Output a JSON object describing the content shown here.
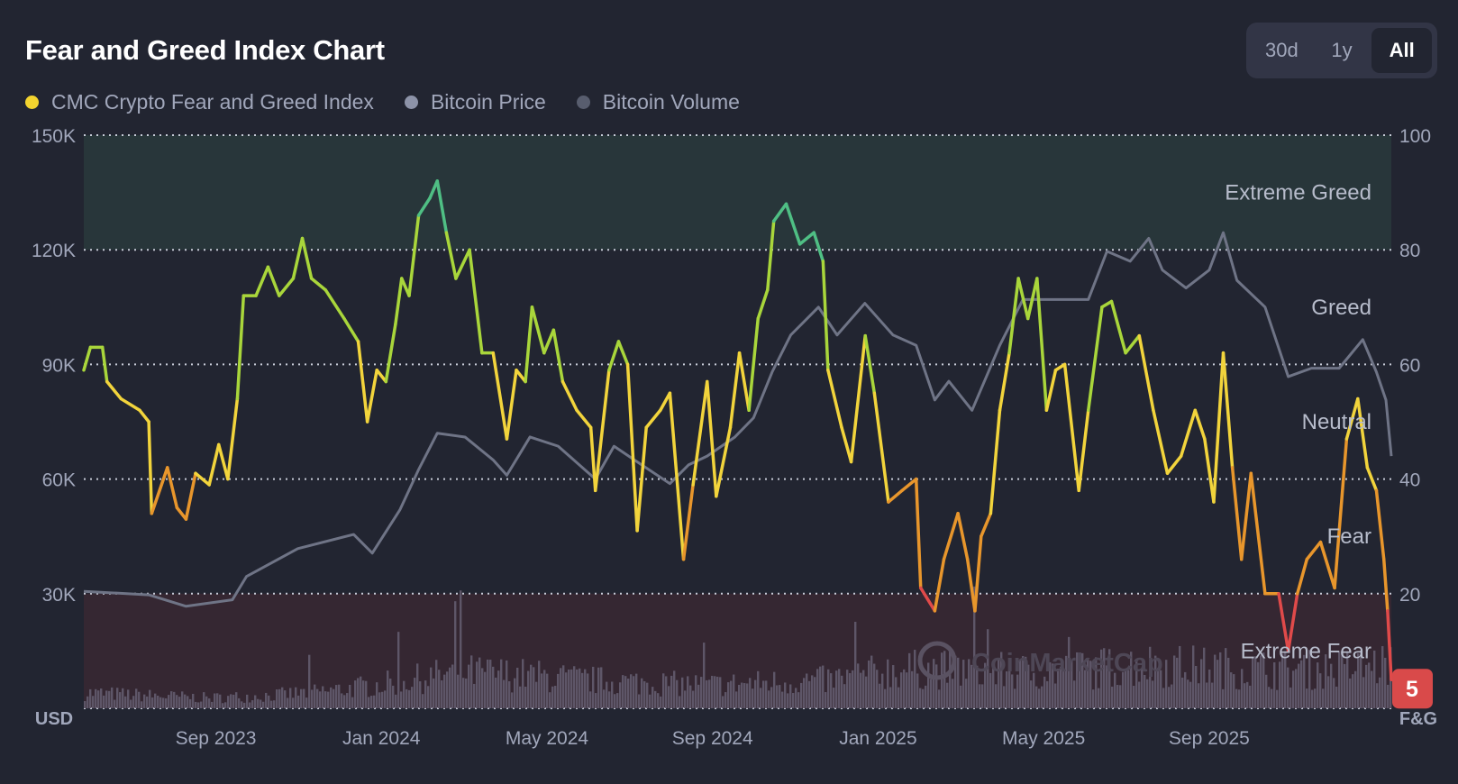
{
  "header": {
    "title": "Fear and Greed Index Chart"
  },
  "legend": [
    {
      "label": "CMC Crypto Fear and Greed Index",
      "color": "#f3d42f"
    },
    {
      "label": "Bitcoin Price",
      "color": "#8d93a8"
    },
    {
      "label": "Bitcoin Volume",
      "color": "#585d6e"
    }
  ],
  "range_buttons": [
    {
      "label": "30d",
      "active": false
    },
    {
      "label": "1y",
      "active": false
    },
    {
      "label": "All",
      "active": true
    }
  ],
  "watermark": "CoinMarketCap",
  "chart_data": {
    "type": "line",
    "title": "Fear and Greed Index Chart",
    "x_unit": "months since Jan 2023",
    "xlim": [
      4.81,
      36.4
    ],
    "x_ticks": [
      {
        "x": 8,
        "label": "Sep 2023"
      },
      {
        "x": 12,
        "label": "Jan 2024"
      },
      {
        "x": 16,
        "label": "May 2024"
      },
      {
        "x": 20,
        "label": "Sep 2024"
      },
      {
        "x": 24,
        "label": "Jan 2025"
      },
      {
        "x": 28,
        "label": "May 2025"
      },
      {
        "x": 32,
        "label": "Sep 2025"
      }
    ],
    "left_axis": {
      "label": "USD",
      "ylim": [
        0,
        150000
      ],
      "ticks": [
        "150K",
        "120K",
        "90K",
        "60K",
        "30K"
      ],
      "tick_values": [
        150000,
        120000,
        90000,
        60000,
        30000
      ]
    },
    "right_axis": {
      "label": "F&G",
      "ylim": [
        0,
        100
      ],
      "ticks": [
        "100",
        "80",
        "60",
        "40",
        "20"
      ],
      "tick_values": [
        100,
        80,
        60,
        40,
        20
      ]
    },
    "zones": [
      {
        "label": "Extreme Greed",
        "range": [
          80,
          100
        ],
        "label_at": 90,
        "color": "#28363a"
      },
      {
        "label": "Greed",
        "range": [
          60,
          80
        ],
        "label_at": 70
      },
      {
        "label": "Neutral",
        "range": [
          40,
          60
        ],
        "label_at": 50
      },
      {
        "label": "Fear",
        "range": [
          20,
          40
        ],
        "label_at": 30
      },
      {
        "label": "Extreme Fear",
        "range": [
          0,
          20
        ],
        "label_at": 10,
        "color": "#352732"
      }
    ],
    "current_value": {
      "label": "5",
      "value": 5,
      "color": "#d94a4a"
    },
    "fear_greed_colors": {
      "extreme_fear": "#e04a4a",
      "fear": "#e8962c",
      "neutral": "#f2d43c",
      "greed": "#a9d63b",
      "extreme_greed": "#4fbf84"
    },
    "series": [
      {
        "name": "CMC Crypto Fear and Greed Index",
        "axis": "right",
        "points": [
          [
            4.81,
            59
          ],
          [
            4.97,
            63
          ],
          [
            5.26,
            63
          ],
          [
            5.37,
            57
          ],
          [
            5.71,
            54
          ],
          [
            6.16,
            52
          ],
          [
            6.38,
            50
          ],
          [
            6.45,
            34
          ],
          [
            6.83,
            42
          ],
          [
            7.06,
            35
          ],
          [
            7.28,
            33
          ],
          [
            7.51,
            41
          ],
          [
            7.84,
            39
          ],
          [
            8.07,
            46
          ],
          [
            8.29,
            40
          ],
          [
            8.52,
            54
          ],
          [
            8.67,
            72
          ],
          [
            8.97,
            72
          ],
          [
            9.26,
            77
          ],
          [
            9.53,
            72
          ],
          [
            9.87,
            75
          ],
          [
            10.09,
            82
          ],
          [
            10.31,
            75
          ],
          [
            10.65,
            73
          ],
          [
            11.1,
            68
          ],
          [
            11.44,
            64
          ],
          [
            11.66,
            50
          ],
          [
            11.89,
            59
          ],
          [
            12.11,
            57
          ],
          [
            12.34,
            67
          ],
          [
            12.49,
            75
          ],
          [
            12.67,
            72
          ],
          [
            12.9,
            86
          ],
          [
            13.17,
            89
          ],
          [
            13.35,
            92
          ],
          [
            13.57,
            83
          ],
          [
            13.8,
            75
          ],
          [
            14.13,
            80
          ],
          [
            14.43,
            62
          ],
          [
            14.7,
            62
          ],
          [
            15.03,
            47
          ],
          [
            15.26,
            59
          ],
          [
            15.48,
            57
          ],
          [
            15.64,
            70
          ],
          [
            15.93,
            62
          ],
          [
            16.16,
            66
          ],
          [
            16.38,
            57
          ],
          [
            16.72,
            52
          ],
          [
            17.06,
            49
          ],
          [
            17.17,
            38
          ],
          [
            17.5,
            59
          ],
          [
            17.73,
            64
          ],
          [
            17.95,
            60
          ],
          [
            18.18,
            31
          ],
          [
            18.4,
            49
          ],
          [
            18.74,
            52
          ],
          [
            18.97,
            55
          ],
          [
            19.3,
            26
          ],
          [
            19.53,
            39
          ],
          [
            19.87,
            57
          ],
          [
            20.09,
            37
          ],
          [
            20.43,
            49
          ],
          [
            20.65,
            62
          ],
          [
            20.88,
            52
          ],
          [
            21.1,
            68
          ],
          [
            21.33,
            73
          ],
          [
            21.48,
            85
          ],
          [
            21.78,
            88
          ],
          [
            22.11,
            81
          ],
          [
            22.45,
            83
          ],
          [
            22.67,
            78
          ],
          [
            22.79,
            59
          ],
          [
            23.12,
            49
          ],
          [
            23.35,
            43
          ],
          [
            23.69,
            65
          ],
          [
            23.91,
            55
          ],
          [
            24.25,
            36
          ],
          [
            24.58,
            38
          ],
          [
            24.92,
            40
          ],
          [
            25.03,
            21
          ],
          [
            25.37,
            17
          ],
          [
            25.59,
            26
          ],
          [
            25.93,
            34
          ],
          [
            26.16,
            26
          ],
          [
            26.34,
            17
          ],
          [
            26.49,
            30
          ],
          [
            26.72,
            34
          ],
          [
            26.94,
            52
          ],
          [
            27.17,
            62
          ],
          [
            27.39,
            75
          ],
          [
            27.62,
            68
          ],
          [
            27.84,
            75
          ],
          [
            28.07,
            52
          ],
          [
            28.29,
            59
          ],
          [
            28.51,
            60
          ],
          [
            28.85,
            38
          ],
          [
            29.08,
            52
          ],
          [
            29.41,
            70
          ],
          [
            29.64,
            71
          ],
          [
            29.98,
            62
          ],
          [
            30.31,
            65
          ],
          [
            30.65,
            52
          ],
          [
            30.99,
            41
          ],
          [
            31.32,
            44
          ],
          [
            31.66,
            52
          ],
          [
            31.89,
            47
          ],
          [
            32.11,
            36
          ],
          [
            32.34,
            62
          ],
          [
            32.56,
            42
          ],
          [
            32.78,
            26
          ],
          [
            33.01,
            41
          ],
          [
            33.35,
            20
          ],
          [
            33.68,
            20
          ],
          [
            33.91,
            10
          ],
          [
            34.13,
            20
          ],
          [
            34.36,
            26
          ],
          [
            34.69,
            29
          ],
          [
            35.03,
            21
          ],
          [
            35.32,
            47
          ],
          [
            35.59,
            54
          ],
          [
            35.82,
            42
          ],
          [
            36.04,
            38
          ],
          [
            36.22,
            26
          ],
          [
            36.31,
            17
          ],
          [
            36.4,
            5
          ]
        ]
      },
      {
        "name": "Bitcoin Price",
        "axis": "left",
        "color": "#6f7486",
        "points": [
          [
            4.81,
            30600
          ],
          [
            6.38,
            29700
          ],
          [
            7.28,
            26700
          ],
          [
            8.4,
            28400
          ],
          [
            8.74,
            34500
          ],
          [
            9.98,
            41800
          ],
          [
            11.33,
            45500
          ],
          [
            11.78,
            40600
          ],
          [
            12.45,
            52000
          ],
          [
            12.9,
            62500
          ],
          [
            13.35,
            72000
          ],
          [
            14.02,
            71000
          ],
          [
            14.7,
            65000
          ],
          [
            15.03,
            61000
          ],
          [
            15.59,
            71000
          ],
          [
            16.27,
            68600
          ],
          [
            17.17,
            60000
          ],
          [
            17.62,
            68600
          ],
          [
            18.29,
            63700
          ],
          [
            18.97,
            58800
          ],
          [
            19.42,
            63700
          ],
          [
            19.87,
            66000
          ],
          [
            20.54,
            71000
          ],
          [
            20.99,
            76000
          ],
          [
            21.44,
            88000
          ],
          [
            21.89,
            97700
          ],
          [
            22.56,
            105000
          ],
          [
            23.01,
            97700
          ],
          [
            23.68,
            106000
          ],
          [
            24.36,
            97700
          ],
          [
            24.92,
            95000
          ],
          [
            25.37,
            80700
          ],
          [
            25.71,
            85600
          ],
          [
            26.27,
            78000
          ],
          [
            26.94,
            95000
          ],
          [
            27.5,
            107000
          ],
          [
            28.4,
            107000
          ],
          [
            29.08,
            107000
          ],
          [
            29.53,
            119600
          ],
          [
            30.09,
            117000
          ],
          [
            30.54,
            123000
          ],
          [
            30.87,
            114700
          ],
          [
            31.44,
            110000
          ],
          [
            32.0,
            114700
          ],
          [
            32.34,
            124500
          ],
          [
            32.67,
            112000
          ],
          [
            33.35,
            105000
          ],
          [
            33.91,
            86800
          ],
          [
            34.47,
            89000
          ],
          [
            35.14,
            89000
          ],
          [
            35.71,
            96500
          ],
          [
            36.04,
            88000
          ],
          [
            36.27,
            80700
          ],
          [
            36.4,
            66000
          ]
        ]
      },
      {
        "name": "Bitcoin Volume",
        "axis": "left",
        "color": "#5e5668",
        "relative_level_by_period": [
          0.12,
          0.1,
          0.08,
          0.1,
          0.14,
          0.2,
          0.28,
          0.26,
          0.22,
          0.2,
          0.18,
          0.2,
          0.22,
          0.3,
          0.3,
          0.28,
          0.3,
          0.34,
          0.32,
          0.3,
          0.3,
          0.34
        ]
      }
    ]
  }
}
